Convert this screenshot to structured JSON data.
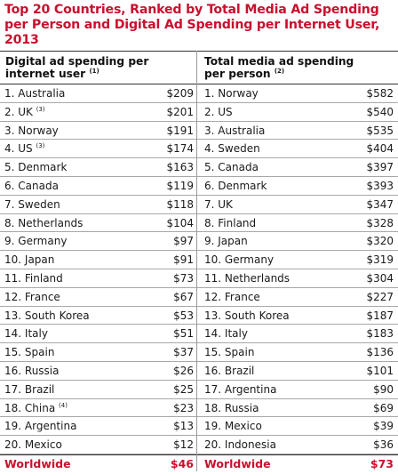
{
  "title": "Top 20 Countries, Ranked by Total Media Ad Spending per Person and Digital Ad Spending per Internet User, 2013",
  "columns": {
    "left": {
      "header_line1": "Digital ad spending per",
      "header_line2": "internet user",
      "note": "(1)"
    },
    "right": {
      "header_line1": "Total media ad spending",
      "header_line2": "per person",
      "note": "(2)"
    }
  },
  "chart_data": {
    "type": "table",
    "title": "Top 20 Countries, Ranked by Total Media Ad Spending per Person and Digital Ad Spending per Internet User, 2013",
    "tables": [
      {
        "name": "Digital ad spending per internet user",
        "rows": [
          {
            "label": "1. Australia",
            "note": "",
            "value": "$209"
          },
          {
            "label": "2. UK",
            "note": "(3)",
            "value": "$201"
          },
          {
            "label": "3. Norway",
            "note": "",
            "value": "$191"
          },
          {
            "label": "4. US",
            "note": "(3)",
            "value": "$174"
          },
          {
            "label": "5. Denmark",
            "note": "",
            "value": "$163"
          },
          {
            "label": "6. Canada",
            "note": "",
            "value": "$119"
          },
          {
            "label": "7. Sweden",
            "note": "",
            "value": "$118"
          },
          {
            "label": "8. Netherlands",
            "note": "",
            "value": "$104"
          },
          {
            "label": "9. Germany",
            "note": "",
            "value": "$97"
          },
          {
            "label": "10. Japan",
            "note": "",
            "value": "$91"
          },
          {
            "label": "11. Finland",
            "note": "",
            "value": "$73"
          },
          {
            "label": "12. France",
            "note": "",
            "value": "$67"
          },
          {
            "label": "13. South Korea",
            "note": "",
            "value": "$53"
          },
          {
            "label": "14. Italy",
            "note": "",
            "value": "$51"
          },
          {
            "label": "15. Spain",
            "note": "",
            "value": "$37"
          },
          {
            "label": "16. Russia",
            "note": "",
            "value": "$26"
          },
          {
            "label": "17. Brazil",
            "note": "",
            "value": "$25"
          },
          {
            "label": "18. China",
            "note": "(4)",
            "value": "$23"
          },
          {
            "label": "19. Argentina",
            "note": "",
            "value": "$13"
          },
          {
            "label": "20. Mexico",
            "note": "",
            "value": "$12"
          }
        ],
        "total": {
          "label": "Worldwide",
          "value": "$46"
        }
      },
      {
        "name": "Total media ad spending per person",
        "rows": [
          {
            "label": "1. Norway",
            "note": "",
            "value": "$582"
          },
          {
            "label": "2. US",
            "note": "",
            "value": "$540"
          },
          {
            "label": "3. Australia",
            "note": "",
            "value": "$535"
          },
          {
            "label": "4. Sweden",
            "note": "",
            "value": "$404"
          },
          {
            "label": "5. Canada",
            "note": "",
            "value": "$397"
          },
          {
            "label": "6. Denmark",
            "note": "",
            "value": "$393"
          },
          {
            "label": "7. UK",
            "note": "",
            "value": "$347"
          },
          {
            "label": "8. Finland",
            "note": "",
            "value": "$328"
          },
          {
            "label": "9. Japan",
            "note": "",
            "value": "$320"
          },
          {
            "label": "10. Germany",
            "note": "",
            "value": "$319"
          },
          {
            "label": "11. Netherlands",
            "note": "",
            "value": "$304"
          },
          {
            "label": "12. France",
            "note": "",
            "value": "$227"
          },
          {
            "label": "13. South Korea",
            "note": "",
            "value": "$187"
          },
          {
            "label": "14. Italy",
            "note": "",
            "value": "$183"
          },
          {
            "label": "15. Spain",
            "note": "",
            "value": "$136"
          },
          {
            "label": "16. Brazil",
            "note": "",
            "value": "$101"
          },
          {
            "label": "17. Argentina",
            "note": "",
            "value": "$90"
          },
          {
            "label": "18. Russia",
            "note": "",
            "value": "$69"
          },
          {
            "label": "19. Mexico",
            "note": "",
            "value": "$39"
          },
          {
            "label": "20. Indonesia",
            "note": "",
            "value": "$36"
          }
        ],
        "total": {
          "label": "Worldwide",
          "value": "$73"
        }
      }
    ]
  },
  "colors": {
    "title": "#c8102e",
    "total": "#c8102e",
    "rule": "#a8a8a8"
  }
}
